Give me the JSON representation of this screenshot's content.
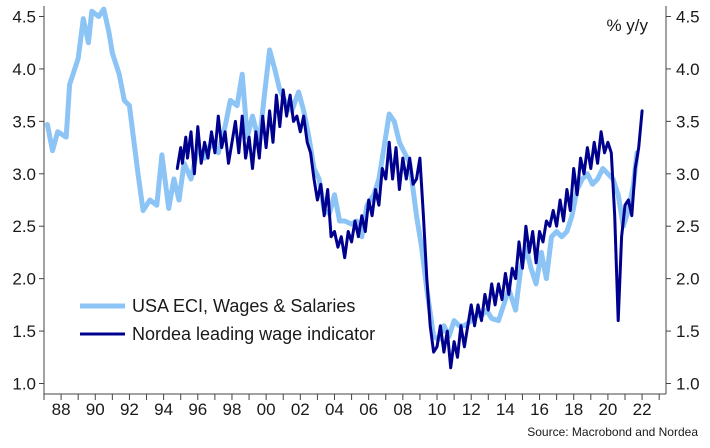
{
  "chart_data": {
    "type": "line",
    "title": "",
    "unit_label": "% y/y",
    "source": "Source: Macrobond and Nordea",
    "xlim": [
      1987.0,
      2023.4
    ],
    "ylim": [
      0.9,
      4.6
    ],
    "y_ticks": [
      "1.0",
      "1.5",
      "2.0",
      "2.5",
      "3.0",
      "3.5",
      "4.0",
      "4.5"
    ],
    "x_tick_labels": [
      "88",
      "90",
      "92",
      "94",
      "96",
      "98",
      "00",
      "02",
      "04",
      "06",
      "08",
      "10",
      "12",
      "14",
      "16",
      "18",
      "20",
      "22"
    ],
    "x_tick_years": [
      1988,
      1990,
      1992,
      1994,
      1996,
      1998,
      2000,
      2002,
      2004,
      2006,
      2008,
      2010,
      2012,
      2014,
      2016,
      2018,
      2020,
      2022
    ],
    "grid": false,
    "legend_position": "bottom-left",
    "series": [
      {
        "name": "USA ECI, Wages & Salaries",
        "color": "#8cc4f5",
        "points": [
          [
            1987.2,
            3.47
          ],
          [
            1987.5,
            3.22
          ],
          [
            1987.8,
            3.4
          ],
          [
            1988.3,
            3.35
          ],
          [
            1988.5,
            3.85
          ],
          [
            1989.0,
            4.1
          ],
          [
            1989.3,
            4.48
          ],
          [
            1989.6,
            4.25
          ],
          [
            1989.8,
            4.55
          ],
          [
            1990.2,
            4.5
          ],
          [
            1990.5,
            4.57
          ],
          [
            1990.8,
            4.35
          ],
          [
            1991.0,
            4.15
          ],
          [
            1991.4,
            3.95
          ],
          [
            1991.7,
            3.7
          ],
          [
            1992.0,
            3.65
          ],
          [
            1992.5,
            3.0
          ],
          [
            1992.8,
            2.65
          ],
          [
            1993.2,
            2.75
          ],
          [
            1993.6,
            2.7
          ],
          [
            1993.9,
            3.18
          ],
          [
            1994.3,
            2.67
          ],
          [
            1994.6,
            2.95
          ],
          [
            1994.9,
            2.75
          ],
          [
            1995.2,
            3.1
          ],
          [
            1995.6,
            2.95
          ],
          [
            1996.0,
            3.25
          ],
          [
            1996.4,
            3.15
          ],
          [
            1996.8,
            3.3
          ],
          [
            1997.2,
            3.2
          ],
          [
            1997.6,
            3.45
          ],
          [
            1997.9,
            3.7
          ],
          [
            1998.3,
            3.65
          ],
          [
            1998.6,
            3.95
          ],
          [
            1998.9,
            3.35
          ],
          [
            1999.2,
            3.55
          ],
          [
            1999.6,
            3.3
          ],
          [
            1999.9,
            3.75
          ],
          [
            2000.2,
            4.18
          ],
          [
            2000.5,
            4.0
          ],
          [
            2000.8,
            3.8
          ],
          [
            2001.1,
            3.7
          ],
          [
            2001.5,
            3.6
          ],
          [
            2001.9,
            3.78
          ],
          [
            2002.2,
            3.6
          ],
          [
            2002.5,
            3.35
          ],
          [
            2002.8,
            3.05
          ],
          [
            2003.1,
            2.95
          ],
          [
            2003.4,
            2.65
          ],
          [
            2003.7,
            2.62
          ],
          [
            2004.0,
            2.8
          ],
          [
            2004.3,
            2.55
          ],
          [
            2004.6,
            2.55
          ],
          [
            2005.0,
            2.52
          ],
          [
            2005.3,
            2.55
          ],
          [
            2005.6,
            2.4
          ],
          [
            2005.9,
            2.7
          ],
          [
            2006.3,
            2.8
          ],
          [
            2006.6,
            2.95
          ],
          [
            2006.9,
            3.25
          ],
          [
            2007.2,
            3.57
          ],
          [
            2007.5,
            3.5
          ],
          [
            2007.8,
            3.3
          ],
          [
            2008.1,
            3.2
          ],
          [
            2008.4,
            3.1
          ],
          [
            2008.8,
            2.6
          ],
          [
            2009.1,
            2.3
          ],
          [
            2009.4,
            1.9
          ],
          [
            2009.8,
            1.45
          ],
          [
            2010.1,
            1.42
          ],
          [
            2010.4,
            1.55
          ],
          [
            2010.7,
            1.45
          ],
          [
            2011.0,
            1.6
          ],
          [
            2011.3,
            1.55
          ],
          [
            2011.6,
            1.55
          ],
          [
            2012.0,
            1.6
          ],
          [
            2012.3,
            1.65
          ],
          [
            2012.6,
            1.65
          ],
          [
            2012.9,
            1.7
          ],
          [
            2013.2,
            1.62
          ],
          [
            2013.6,
            1.6
          ],
          [
            2013.9,
            1.75
          ],
          [
            2014.2,
            1.9
          ],
          [
            2014.6,
            1.7
          ],
          [
            2014.9,
            2.1
          ],
          [
            2015.2,
            2.3
          ],
          [
            2015.5,
            2.1
          ],
          [
            2015.8,
            1.95
          ],
          [
            2016.1,
            2.25
          ],
          [
            2016.4,
            2.0
          ],
          [
            2016.7,
            2.4
          ],
          [
            2017.0,
            2.45
          ],
          [
            2017.3,
            2.4
          ],
          [
            2017.6,
            2.45
          ],
          [
            2017.9,
            2.6
          ],
          [
            2018.2,
            2.85
          ],
          [
            2018.5,
            2.95
          ],
          [
            2018.8,
            3.0
          ],
          [
            2019.1,
            2.9
          ],
          [
            2019.4,
            2.95
          ],
          [
            2019.7,
            3.05
          ],
          [
            2020.0,
            3.0
          ],
          [
            2020.3,
            2.95
          ],
          [
            2020.6,
            2.8
          ],
          [
            2020.9,
            2.5
          ],
          [
            2021.2,
            2.65
          ],
          [
            2021.5,
            2.9
          ],
          [
            2021.7,
            3.2
          ]
        ]
      },
      {
        "name": "Nordea leading wage indicator",
        "color": "#00008f",
        "points": [
          [
            1994.8,
            3.05
          ],
          [
            1995.0,
            3.25
          ],
          [
            1995.1,
            3.1
          ],
          [
            1995.3,
            3.35
          ],
          [
            1995.4,
            3.15
          ],
          [
            1995.6,
            3.4
          ],
          [
            1995.8,
            3.0
          ],
          [
            1996.0,
            3.45
          ],
          [
            1996.2,
            3.1
          ],
          [
            1996.4,
            3.3
          ],
          [
            1996.6,
            3.15
          ],
          [
            1996.8,
            3.4
          ],
          [
            1997.0,
            3.2
          ],
          [
            1997.2,
            3.55
          ],
          [
            1997.4,
            3.25
          ],
          [
            1997.6,
            3.4
          ],
          [
            1997.8,
            3.1
          ],
          [
            1998.0,
            3.3
          ],
          [
            1998.2,
            3.5
          ],
          [
            1998.4,
            3.2
          ],
          [
            1998.6,
            3.55
          ],
          [
            1998.8,
            3.15
          ],
          [
            1999.0,
            3.35
          ],
          [
            1999.2,
            3.05
          ],
          [
            1999.4,
            3.4
          ],
          [
            1999.6,
            3.15
          ],
          [
            1999.8,
            3.55
          ],
          [
            2000.0,
            3.25
          ],
          [
            2000.2,
            3.6
          ],
          [
            2000.4,
            3.3
          ],
          [
            2000.6,
            3.75
          ],
          [
            2000.8,
            3.45
          ],
          [
            2001.0,
            3.8
          ],
          [
            2001.2,
            3.55
          ],
          [
            2001.4,
            3.75
          ],
          [
            2001.6,
            3.5
          ],
          [
            2001.8,
            3.55
          ],
          [
            2002.0,
            3.4
          ],
          [
            2002.2,
            3.55
          ],
          [
            2002.4,
            3.3
          ],
          [
            2002.6,
            3.2
          ],
          [
            2002.8,
            2.95
          ],
          [
            2003.0,
            2.75
          ],
          [
            2003.2,
            2.9
          ],
          [
            2003.4,
            2.6
          ],
          [
            2003.6,
            2.85
          ],
          [
            2003.8,
            2.4
          ],
          [
            2004.0,
            2.45
          ],
          [
            2004.2,
            2.3
          ],
          [
            2004.4,
            2.4
          ],
          [
            2004.6,
            2.2
          ],
          [
            2004.8,
            2.45
          ],
          [
            2005.0,
            2.35
          ],
          [
            2005.2,
            2.55
          ],
          [
            2005.4,
            2.4
          ],
          [
            2005.6,
            2.6
          ],
          [
            2005.8,
            2.45
          ],
          [
            2006.0,
            2.75
          ],
          [
            2006.2,
            2.6
          ],
          [
            2006.4,
            2.85
          ],
          [
            2006.6,
            2.7
          ],
          [
            2006.8,
            3.05
          ],
          [
            2007.0,
            2.95
          ],
          [
            2007.2,
            3.3
          ],
          [
            2007.4,
            2.95
          ],
          [
            2007.6,
            3.25
          ],
          [
            2007.8,
            2.85
          ],
          [
            2008.0,
            3.15
          ],
          [
            2008.2,
            2.95
          ],
          [
            2008.4,
            3.15
          ],
          [
            2008.6,
            2.9
          ],
          [
            2008.8,
            2.95
          ],
          [
            2009.0,
            3.15
          ],
          [
            2009.2,
            2.6
          ],
          [
            2009.4,
            2.0
          ],
          [
            2009.6,
            1.55
          ],
          [
            2009.8,
            1.3
          ],
          [
            2010.0,
            1.35
          ],
          [
            2010.2,
            1.55
          ],
          [
            2010.4,
            1.3
          ],
          [
            2010.6,
            1.5
          ],
          [
            2010.8,
            1.15
          ],
          [
            2011.0,
            1.4
          ],
          [
            2011.2,
            1.25
          ],
          [
            2011.4,
            1.55
          ],
          [
            2011.6,
            1.35
          ],
          [
            2011.8,
            1.55
          ],
          [
            2012.0,
            1.75
          ],
          [
            2012.2,
            1.55
          ],
          [
            2012.4,
            1.75
          ],
          [
            2012.6,
            1.6
          ],
          [
            2012.8,
            1.85
          ],
          [
            2013.0,
            1.7
          ],
          [
            2013.2,
            1.95
          ],
          [
            2013.4,
            1.75
          ],
          [
            2013.6,
            1.95
          ],
          [
            2013.8,
            1.8
          ],
          [
            2014.0,
            2.05
          ],
          [
            2014.2,
            1.85
          ],
          [
            2014.4,
            2.1
          ],
          [
            2014.6,
            2.0
          ],
          [
            2014.8,
            2.35
          ],
          [
            2015.0,
            2.1
          ],
          [
            2015.2,
            2.5
          ],
          [
            2015.4,
            2.25
          ],
          [
            2015.6,
            2.45
          ],
          [
            2015.8,
            2.15
          ],
          [
            2016.0,
            2.45
          ],
          [
            2016.2,
            2.35
          ],
          [
            2016.4,
            2.55
          ],
          [
            2016.6,
            2.5
          ],
          [
            2016.8,
            2.65
          ],
          [
            2017.0,
            2.5
          ],
          [
            2017.2,
            2.75
          ],
          [
            2017.4,
            2.55
          ],
          [
            2017.6,
            2.85
          ],
          [
            2017.8,
            2.65
          ],
          [
            2018.0,
            3.05
          ],
          [
            2018.2,
            2.8
          ],
          [
            2018.4,
            3.15
          ],
          [
            2018.6,
            3.0
          ],
          [
            2018.8,
            3.25
          ],
          [
            2019.0,
            3.05
          ],
          [
            2019.2,
            3.3
          ],
          [
            2019.4,
            3.1
          ],
          [
            2019.6,
            3.4
          ],
          [
            2019.8,
            3.2
          ],
          [
            2020.0,
            3.3
          ],
          [
            2020.2,
            3.2
          ],
          [
            2020.4,
            2.6
          ],
          [
            2020.6,
            1.6
          ],
          [
            2020.8,
            2.4
          ],
          [
            2021.0,
            2.7
          ],
          [
            2021.2,
            2.75
          ],
          [
            2021.4,
            2.6
          ],
          [
            2021.6,
            3.05
          ],
          [
            2021.8,
            3.25
          ],
          [
            2022.0,
            3.6
          ]
        ]
      }
    ]
  }
}
